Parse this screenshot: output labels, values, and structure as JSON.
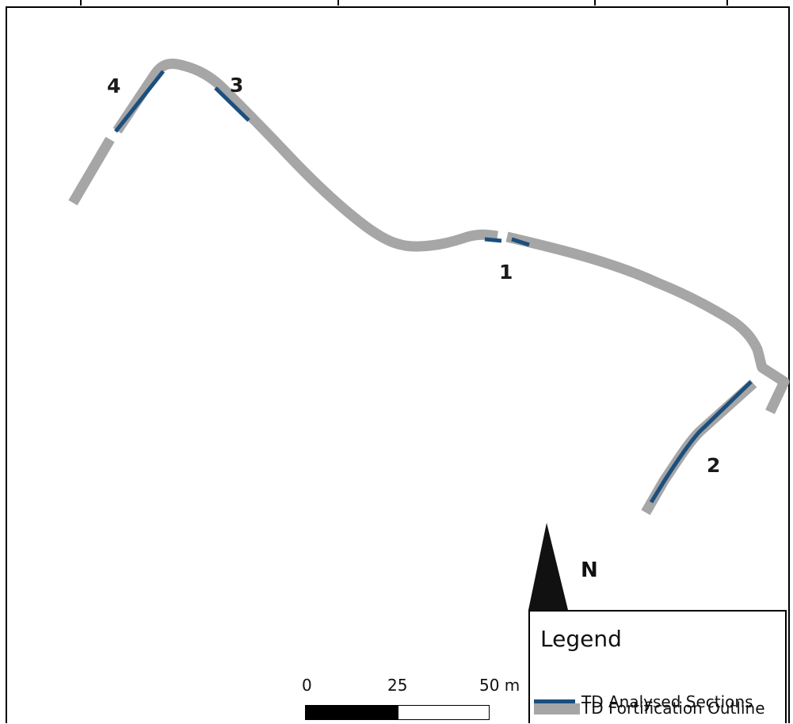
{
  "map": {
    "section_labels": [
      "4",
      "3",
      "1",
      "2"
    ],
    "north_label": "N",
    "colors": {
      "fortification_outline": "#a6a6a6",
      "analysed_sections": "#1b4f7e",
      "north_arrow": "#111111",
      "frame": "#000000"
    }
  },
  "legend": {
    "title": "Legend",
    "items": [
      {
        "label": "TD Analysed Sections",
        "color": "#1b4f7e",
        "symbol": "thin-line"
      },
      {
        "label": "TD Fortification Outline",
        "color": "#a6a6a6",
        "symbol": "thick-line"
      }
    ]
  },
  "scale_bar": {
    "labels": [
      "0",
      "25",
      "50 m"
    ]
  }
}
